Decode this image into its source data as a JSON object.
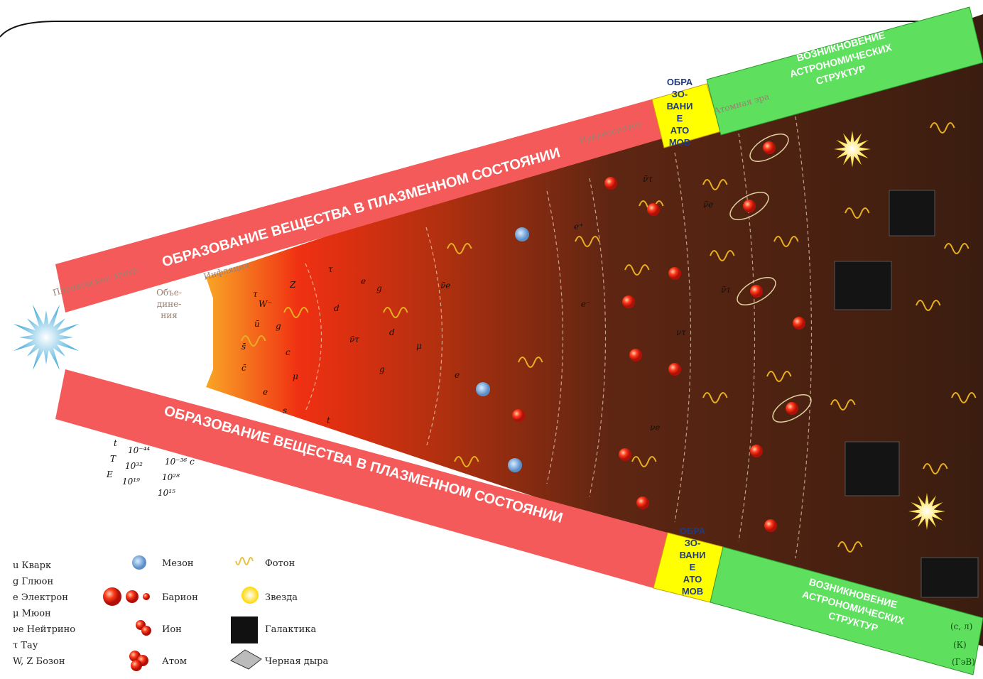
{
  "top_band": {
    "text": "ОБРАЗОВАНИЕ ВЕЩЕСТВА В ПЛАЗМЕННОМ СОСТОЯНИИ",
    "formation": [
      "ОБРА",
      "ЗО-",
      "ВАНИ",
      "Е",
      "АТО",
      "МОВ"
    ],
    "structures": [
      "ВОЗНИКНОВЕНИЕ",
      "АСТРОНОМИЧЕСКИХ",
      "СТРУКТУР"
    ]
  },
  "bottom_band": {
    "text": "ОБРАЗОВАНИЕ ВЕЩЕСТВА В ПЛАЗМЕННОМ СОСТОЯНИИ",
    "formation": [
      "ОБРА",
      "ЗО-",
      "ВАНИ",
      "Е",
      "АТО",
      "МОВ"
    ],
    "structures": [
      "ВОЗНИКНОВЕНИЕ",
      "АСТРОНОМИЧЕСКИХ",
      "СТРУКТУР"
    ]
  },
  "eras": [
    "Планковская эпоха",
    "Объе-",
    "дине-",
    "ния",
    "Инфляция",
    "Нуклеосинтез",
    "Атомная эра"
  ],
  "scale": {
    "labels": [
      "t",
      "T",
      "E"
    ],
    "values": [
      "10⁻⁴⁴",
      "10³²",
      "10¹⁹",
      "10⁻³⁶ с",
      "10²⁸",
      "10¹⁵"
    ]
  },
  "units": [
    "(с, л)",
    "(К)",
    "(ГэВ)"
  ],
  "particles": [
    "τ",
    "W⁻",
    "Z",
    "ū",
    "g",
    "s̄",
    "c",
    "c̄",
    "μ",
    "e",
    "s",
    "τ",
    "d",
    "e",
    "ν̄τ",
    "g",
    "d",
    "μ",
    "e",
    "g",
    "t",
    "ν̄e",
    "e⁺",
    "e⁻",
    "ν̄τ",
    "νe",
    "ν̄e",
    "ν̄τ",
    "ντ"
  ],
  "legend": {
    "particles": [
      "u Кварк",
      "g Глюон",
      "e Электрон",
      "μ Мюон",
      "νe Нейтрино",
      "τ Тау",
      "W, Z Бозон"
    ],
    "objects": [
      "Мезон",
      "Барион",
      "Ион",
      "Атом",
      "Фотон",
      "Звезда",
      "Галактика",
      "Черная дыра"
    ]
  }
}
